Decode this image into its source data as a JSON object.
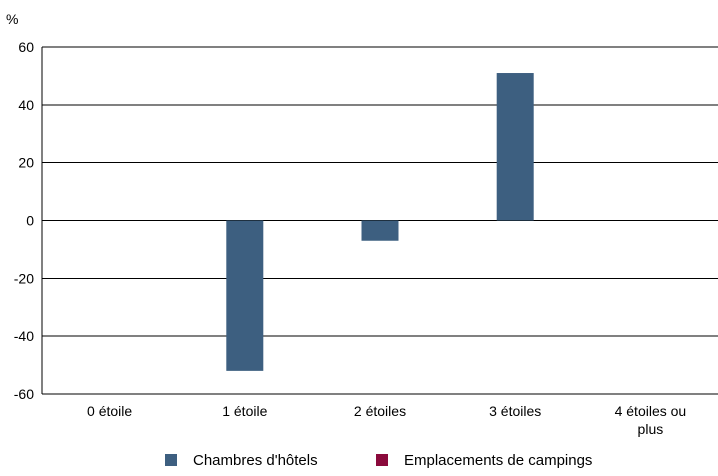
{
  "chart_data": {
    "type": "bar",
    "ylabel": "%",
    "ylim": [
      -60,
      60
    ],
    "yticks": [
      60,
      40,
      20,
      0,
      -20,
      -40,
      -60
    ],
    "categories": [
      "0 étoile",
      "1 étoile",
      "2 étoiles",
      "3 étoiles",
      "4 étoiles ou plus"
    ],
    "series": [
      {
        "name": "Chambres d'hôtels",
        "color": "#3d5f80",
        "values": [
          0,
          -52,
          -7,
          51,
          0
        ]
      },
      {
        "name": "Emplacements de campings",
        "color": "#8b0a3c",
        "values": [
          0,
          0,
          0,
          0,
          0
        ]
      }
    ],
    "grid": true,
    "legend_position": "bottom"
  }
}
